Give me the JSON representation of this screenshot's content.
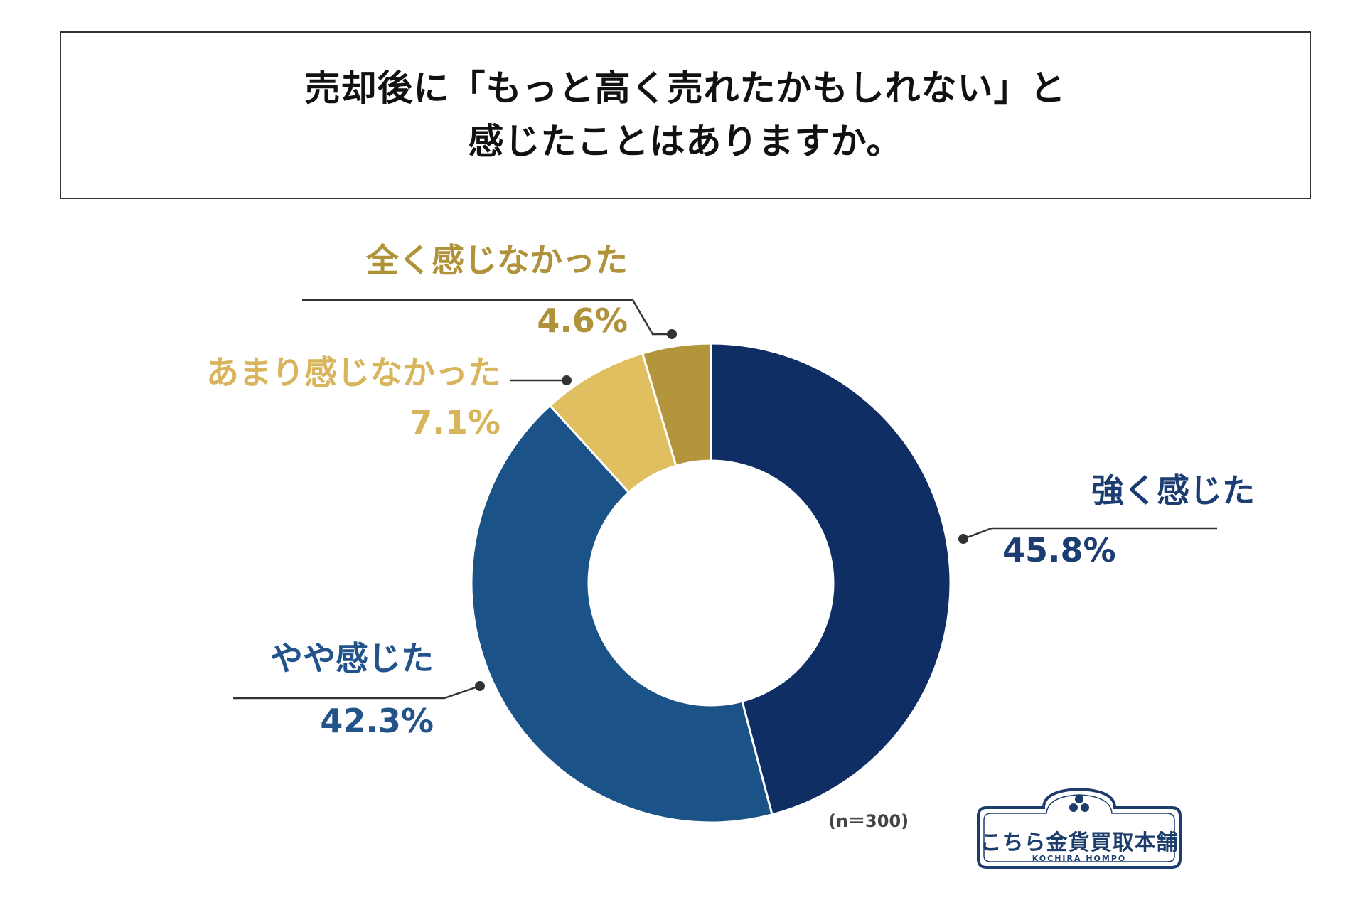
{
  "header": {
    "title_line1": "売却後に「もっと高く売れたかもしれない」と",
    "title_line2": "感じたことはありますか。"
  },
  "note": "(n＝300)",
  "logo": {
    "name": "こちら金貨買取本舗",
    "sub": "KOCHIRA HOMPO",
    "color": "#1c3d6b"
  },
  "chart_data": {
    "type": "pie",
    "donut": true,
    "sample_size_label": "(n＝300)",
    "categories": [
      "強く感じた",
      "やや感じた",
      "あまり感じなかった",
      "全く感じなかった"
    ],
    "values": [
      45.8,
      42.3,
      7.1,
      4.6
    ],
    "value_labels": [
      "45.8%",
      "42.3%",
      "7.1%",
      "4.6%"
    ],
    "colors": [
      "#0f2e63",
      "#1b5389",
      "#e0bf60",
      "#b3963c"
    ],
    "label_colors": [
      "#1c3d72",
      "#22548a",
      "#d8b45a",
      "#b0923a"
    ],
    "start": "12 o'clock",
    "direction": "clockwise",
    "legend": "none (labels beside slices)"
  }
}
